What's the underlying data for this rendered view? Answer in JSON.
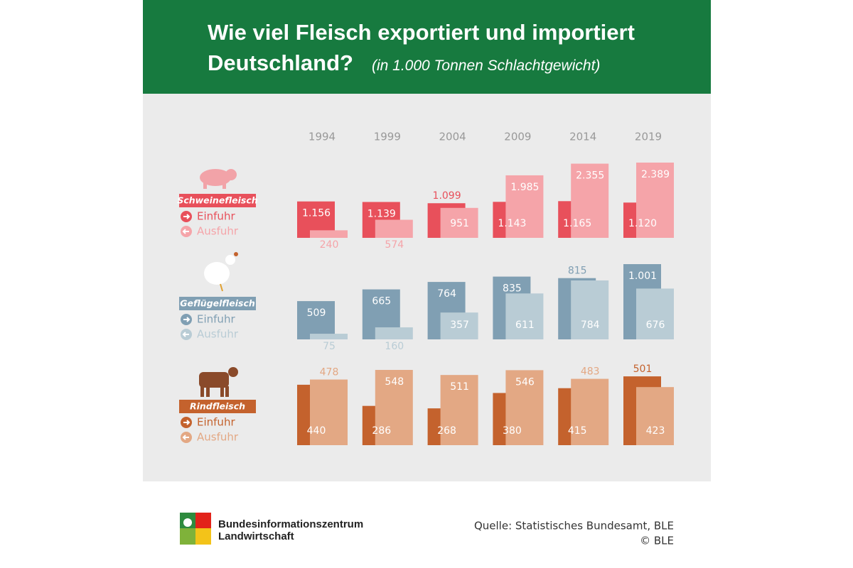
{
  "chart_data": {
    "type": "bar",
    "title": "Wie viel Fleisch exportiert und importiert Deutschland?",
    "subtitle": "(in 1.000 Tonnen Schlachtgewicht)",
    "categories": [
      "1994",
      "1999",
      "2004",
      "2009",
      "2014",
      "2019"
    ],
    "groups": [
      {
        "name": "Schweinefleisch",
        "series": [
          {
            "name": "Einfuhr",
            "color": "#e8505b",
            "values": [
              1156,
              1139,
              1099,
              1143,
              1165,
              1120
            ],
            "value_labels": [
              "1.156",
              "1.139",
              "1.099",
              "1.143",
              "1.165",
              "1.120"
            ]
          },
          {
            "name": "Ausfuhr",
            "color": "#f5a4a9",
            "values": [
              240,
              574,
              951,
              1985,
              2355,
              2389
            ],
            "value_labels": [
              "240",
              "574",
              "951",
              "1.985",
              "2.355",
              "2.389"
            ]
          }
        ]
      },
      {
        "name": "Geflügelfleisch",
        "series": [
          {
            "name": "Einfuhr",
            "color": "#809fb3",
            "values": [
              509,
              665,
              764,
              835,
              815,
              1001
            ],
            "value_labels": [
              "509",
              "665",
              "764",
              "835",
              "815",
              "1.001"
            ]
          },
          {
            "name": "Ausfuhr",
            "color": "#b9ccd5",
            "values": [
              75,
              160,
              357,
              611,
              784,
              676
            ]
          }
        ]
      },
      {
        "name": "Rindfleisch",
        "series": [
          {
            "name": "Einfuhr",
            "color": "#c4622d",
            "values": [
              440,
              286,
              268,
              380,
              415,
              501
            ]
          },
          {
            "name": "Ausfuhr",
            "color": "#e3a884",
            "values": [
              478,
              548,
              511,
              546,
              483,
              423
            ]
          }
        ]
      }
    ]
  },
  "footer": {
    "logo": "Bundesinformationszentrum Landwirtschaft",
    "source": "Quelle: Statistisches Bundesamt, BLE",
    "copyright": "© BLE"
  }
}
